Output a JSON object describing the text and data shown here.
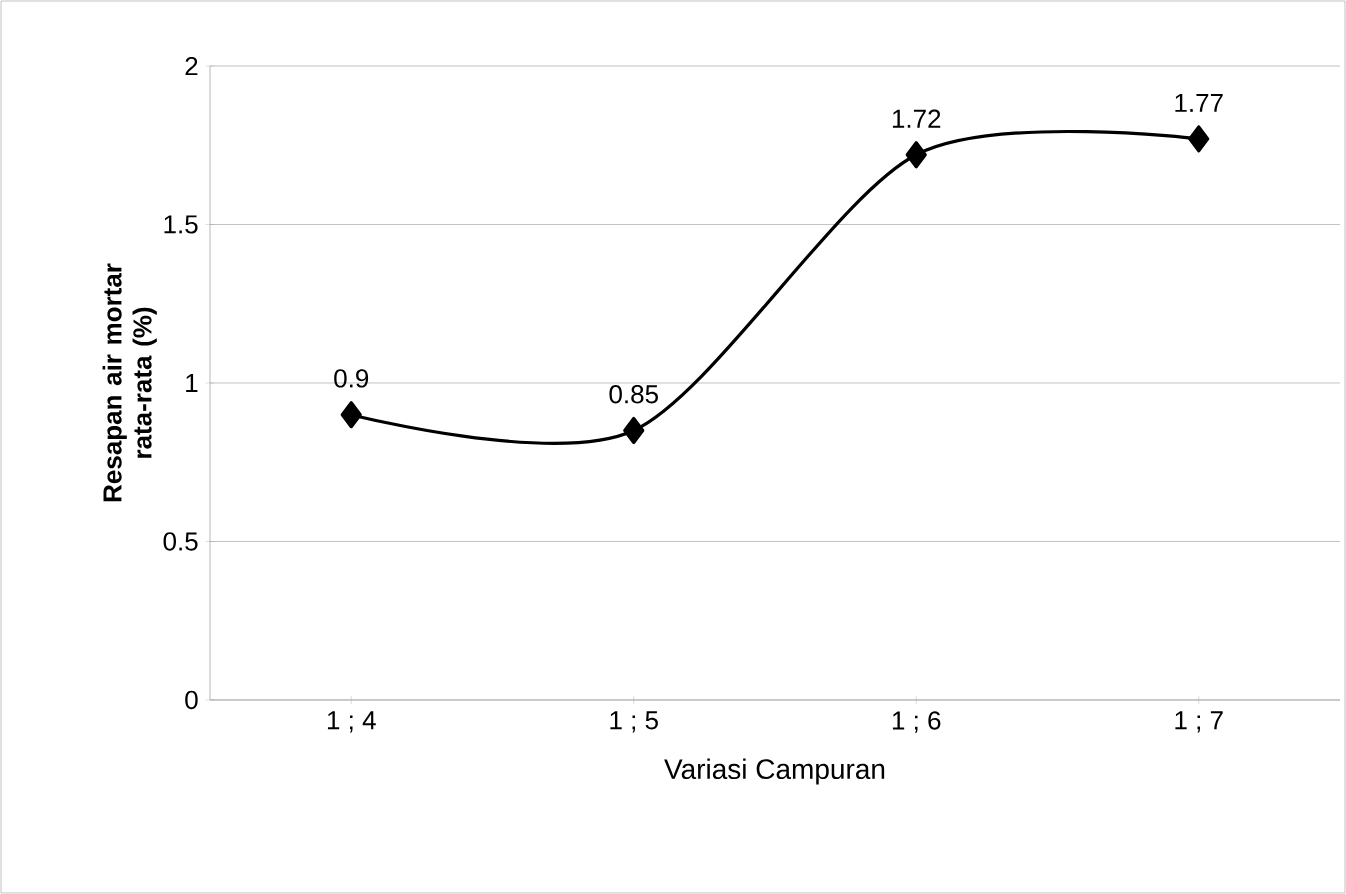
{
  "chart_data": {
    "type": "line",
    "xlabel": "Variasi Campuran",
    "ylabel": "Resapan air mortar rata-rata (%)",
    "categories": [
      "1 ; 4",
      "1 ; 5",
      "1 ; 6",
      "1 ; 7"
    ],
    "values": [
      0.9,
      0.85,
      1.72,
      1.77
    ],
    "color": "#000000",
    "ylim": [
      0,
      2
    ],
    "yticks": [
      0,
      0.5,
      1,
      1.5,
      2
    ],
    "grid": "y",
    "marker": "diamond",
    "line_style": "solid",
    "data_labels": true
  }
}
